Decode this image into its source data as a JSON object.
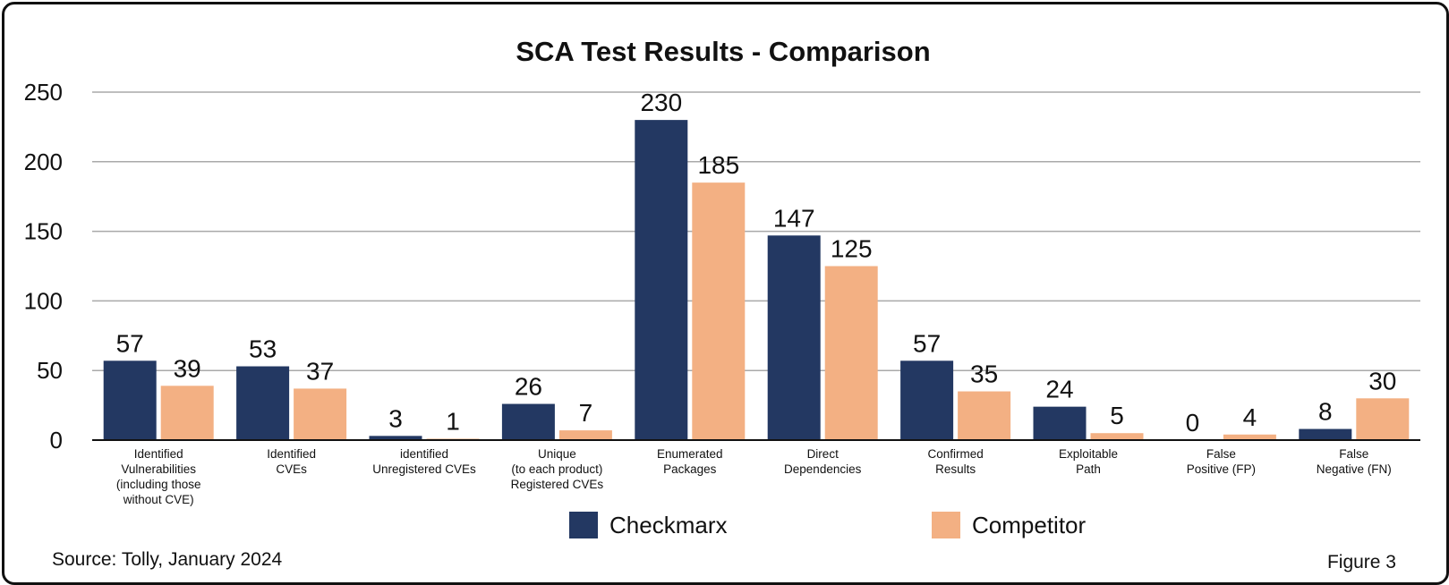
{
  "chart_data": {
    "type": "bar",
    "title": "SCA Test Results - Comparison",
    "categories": [
      [
        "Identified",
        "Vulnerabilities",
        "(including those",
        "without CVE)"
      ],
      [
        "Identified",
        "CVEs"
      ],
      [
        "identified",
        "Unregistered CVEs"
      ],
      [
        "Unique",
        "(to each product)",
        "Registered CVEs"
      ],
      [
        "Enumerated",
        "Packages"
      ],
      [
        "Direct",
        "Dependencies"
      ],
      [
        "Confirmed",
        "Results"
      ],
      [
        "Exploitable",
        "Path"
      ],
      [
        "False",
        "Positive (FP)"
      ],
      [
        "False",
        "Negative (FN)"
      ]
    ],
    "series": [
      {
        "name": "Checkmarx",
        "color": "#233862",
        "values": [
          57,
          53,
          3,
          26,
          230,
          147,
          57,
          24,
          0,
          8
        ]
      },
      {
        "name": "Competitor",
        "color": "#F3B083",
        "values": [
          39,
          37,
          1,
          7,
          185,
          125,
          35,
          5,
          4,
          30
        ]
      }
    ],
    "yticks": [
      0,
      50,
      100,
      150,
      200,
      250
    ],
    "ylim": [
      0,
      250
    ],
    "grid": true,
    "legend": "bottom-center",
    "xlabel": "",
    "ylabel": ""
  },
  "footer": {
    "source": "Source: Tolly, January 2024",
    "figure": "Figure 3"
  }
}
